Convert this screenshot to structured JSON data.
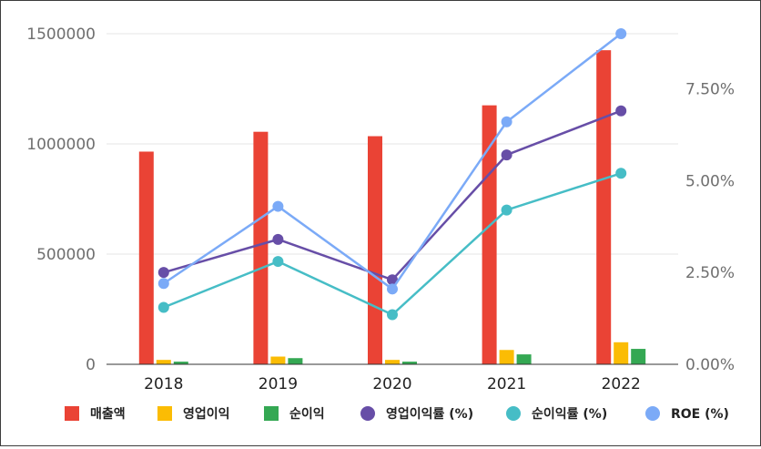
{
  "chart_data": {
    "type": "bar",
    "categories": [
      "2018",
      "2019",
      "2020",
      "2021",
      "2022"
    ],
    "left_axis": {
      "ticks": [
        "0",
        "500000",
        "1000000",
        "1500000"
      ],
      "ylim": [
        0,
        1500000
      ]
    },
    "right_axis": {
      "ticks": [
        "0.00%",
        "2.50%",
        "5.00%",
        "7.50%"
      ],
      "ylim": [
        0,
        9.0
      ]
    },
    "bar_series": [
      {
        "name": "매출액",
        "color": "#ea4335",
        "values": [
          965000,
          1055000,
          1035000,
          1175000,
          1425000
        ]
      },
      {
        "name": "영업이익",
        "color": "#fbbc04",
        "values": [
          20000,
          35000,
          20000,
          65000,
          100000
        ]
      },
      {
        "name": "순이익",
        "color": "#34a853",
        "values": [
          12000,
          28000,
          12000,
          45000,
          70000
        ]
      }
    ],
    "line_series": [
      {
        "name": "영업이익률 (%)",
        "color": "#674ea7",
        "values": [
          2.5,
          3.4,
          2.3,
          5.7,
          6.9
        ]
      },
      {
        "name": "순이익률 (%)",
        "color": "#46bdc6",
        "values": [
          1.55,
          2.8,
          1.35,
          4.2,
          5.2
        ]
      },
      {
        "name": "ROE (%)",
        "color": "#7baaf7",
        "values": [
          2.2,
          4.3,
          2.05,
          6.6,
          9.0
        ]
      }
    ],
    "legend": [
      {
        "name": "매출액",
        "marker": "square",
        "color": "#ea4335"
      },
      {
        "name": "영업이익",
        "marker": "square",
        "color": "#fbbc04"
      },
      {
        "name": "순이익",
        "marker": "square",
        "color": "#34a853"
      },
      {
        "name": "영업이익률 (%)",
        "marker": "circle",
        "color": "#674ea7"
      },
      {
        "name": "순이익률 (%)",
        "marker": "circle",
        "color": "#46bdc6"
      },
      {
        "name": "ROE (%)",
        "marker": "circle",
        "color": "#7baaf7"
      }
    ],
    "legend_position": "bottom",
    "grid": true
  }
}
